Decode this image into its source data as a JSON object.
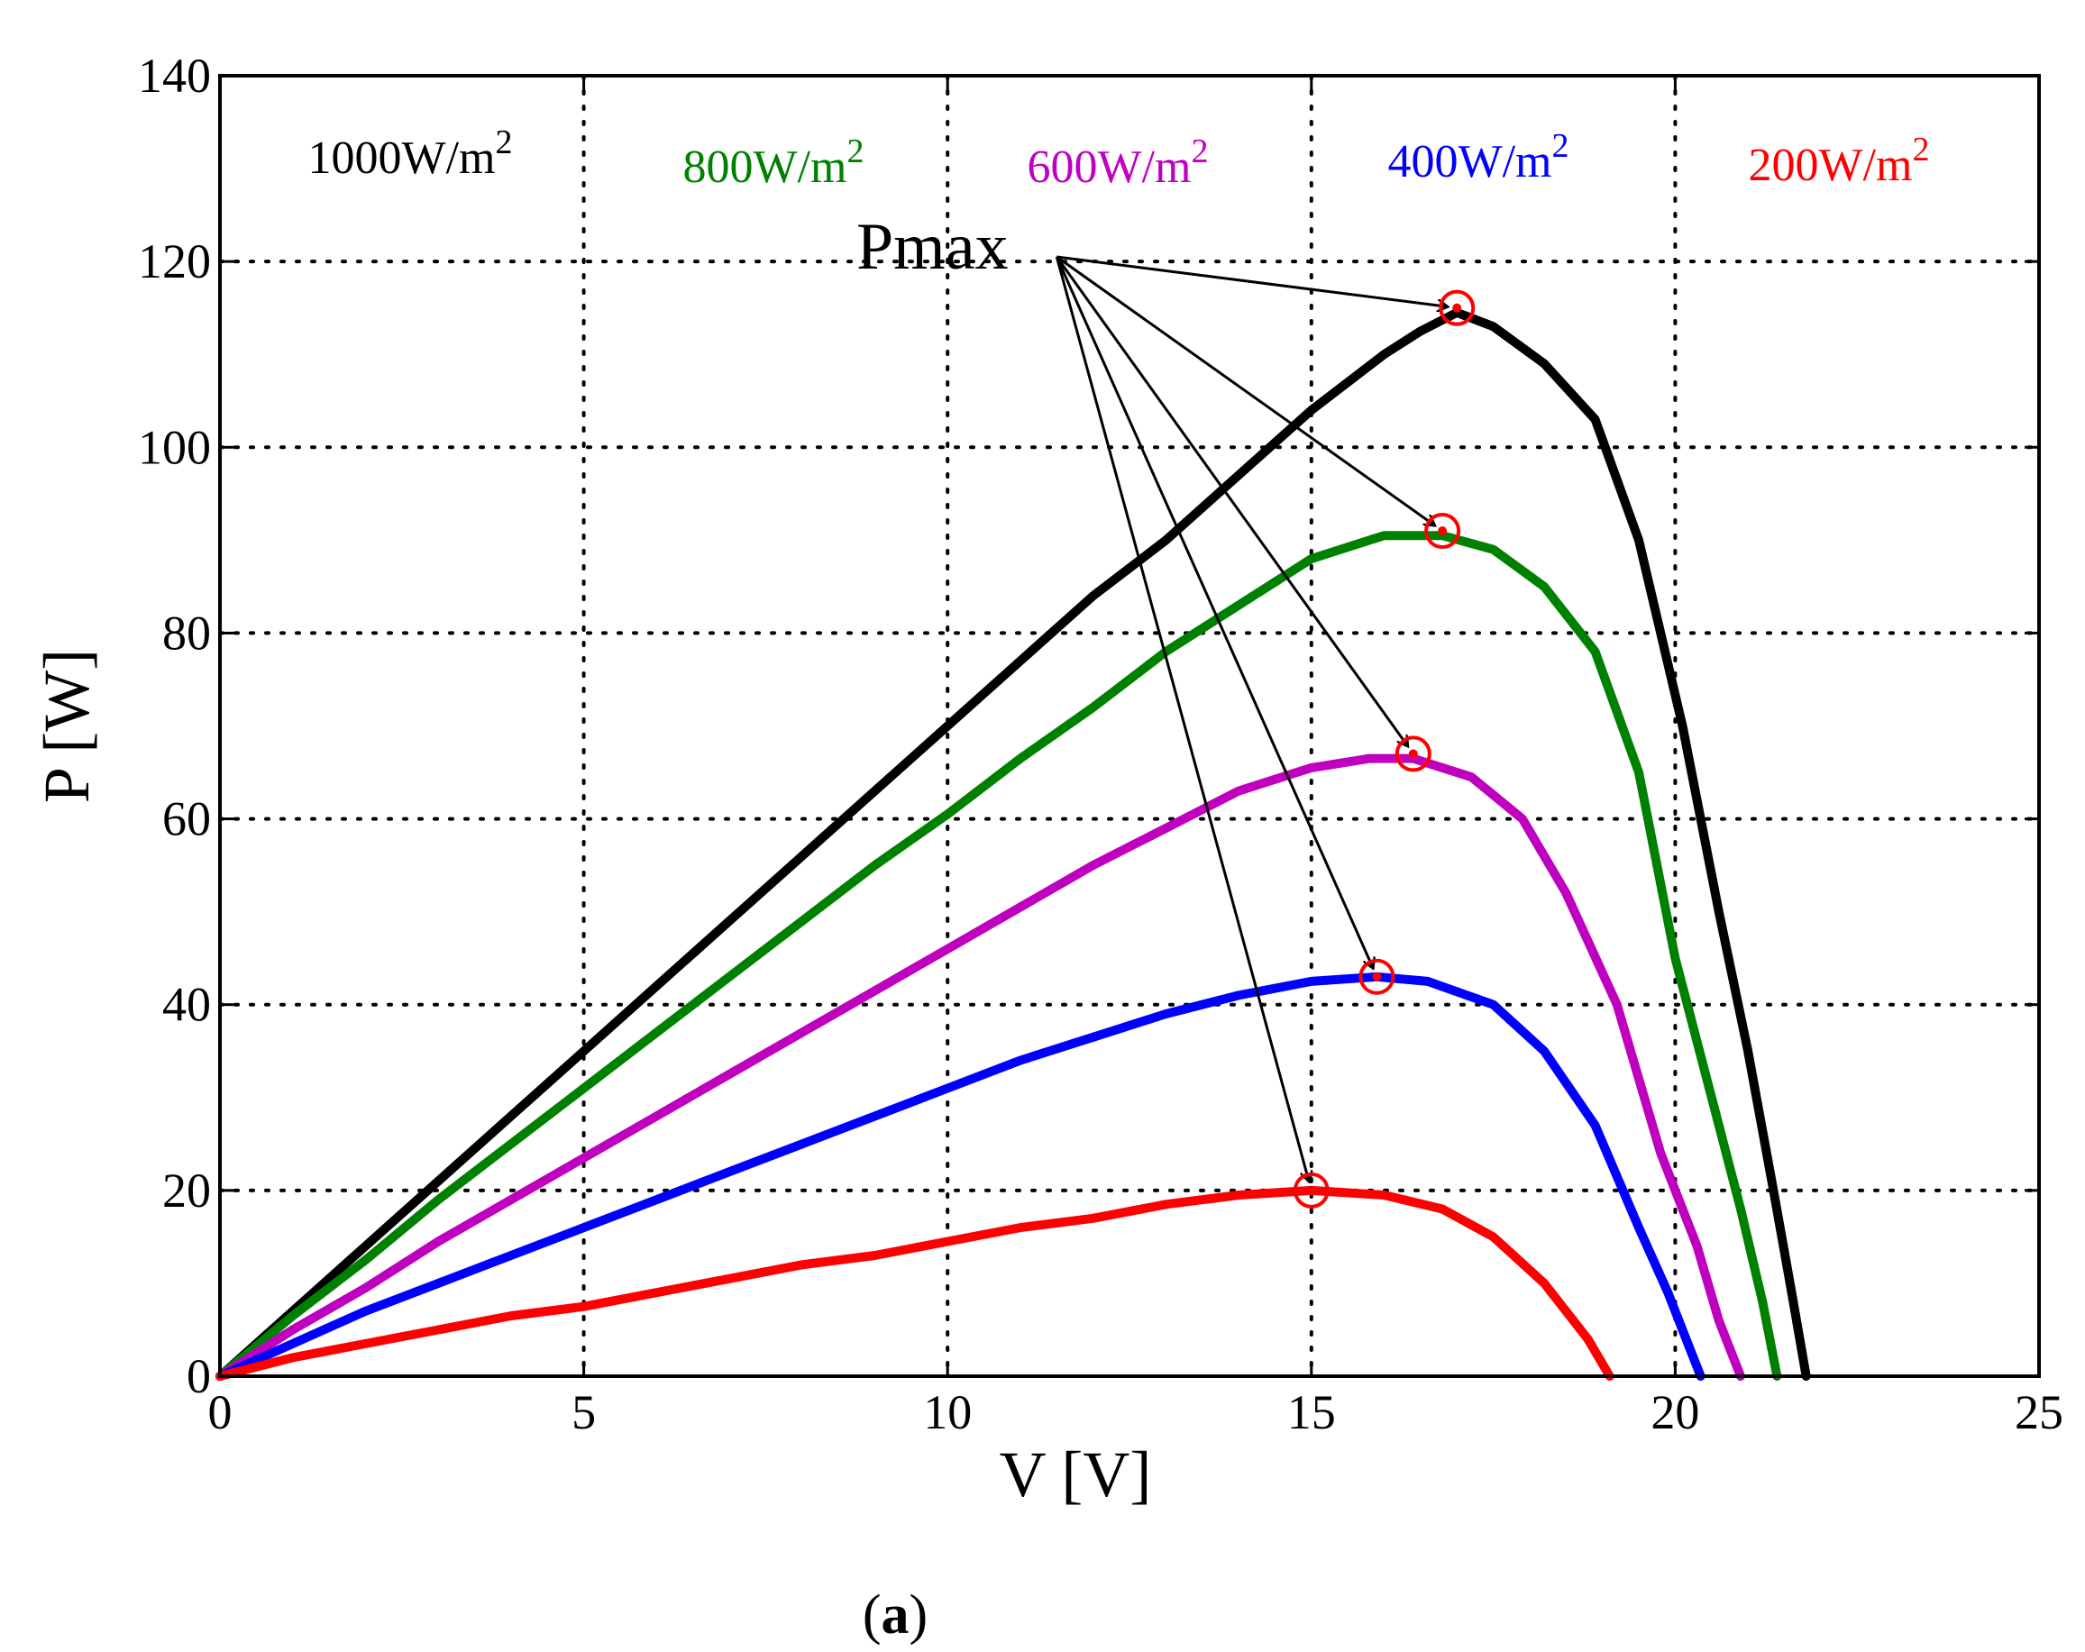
{
  "chart_data": {
    "type": "line",
    "xlabel": "V [V]",
    "ylabel": "P [W]",
    "xlim": [
      0,
      25
    ],
    "ylim": [
      0,
      140
    ],
    "xticks": [
      {
        "value": 0,
        "label": "0"
      },
      {
        "value": 5,
        "label": "5"
      },
      {
        "value": 10,
        "label": "10"
      },
      {
        "value": 15,
        "label": "15"
      },
      {
        "value": 20,
        "label": "20"
      },
      {
        "value": 25,
        "label": "25"
      }
    ],
    "yticks": [
      {
        "value": 0,
        "label": "0"
      },
      {
        "value": 20,
        "label": "20"
      },
      {
        "value": 40,
        "label": "40"
      },
      {
        "value": 60,
        "label": "60"
      },
      {
        "value": 80,
        "label": "80"
      },
      {
        "value": 100,
        "label": "100"
      },
      {
        "value": 120,
        "label": "120"
      },
      {
        "value": 140,
        "label": "140"
      }
    ],
    "grid": true,
    "series": [
      {
        "name": "1000W/m2",
        "label_main": "1000W/m",
        "label_sup": "2",
        "color": "#000000",
        "x": [
          0,
          1,
          2,
          3,
          4,
          5,
          6,
          7,
          8,
          9,
          10,
          11,
          12,
          13,
          14,
          15,
          16,
          16.5,
          17,
          17.5,
          18.2,
          18.9,
          19.5,
          20.1,
          20.6,
          21.0,
          21.35,
          21.6,
          21.8
        ],
        "y": [
          0,
          7,
          14,
          21,
          28,
          35,
          42,
          49,
          56,
          63,
          70,
          77,
          84,
          90,
          97,
          104,
          110,
          112.5,
          114.5,
          113,
          109,
          103,
          90,
          70,
          50,
          35,
          20,
          9,
          0
        ],
        "pmax": [
          17.0,
          115
        ]
      },
      {
        "name": "800W/m2",
        "label_main": "800W/m",
        "label_sup": "2",
        "color": "#008000",
        "x": [
          0,
          1,
          2,
          3,
          4,
          5,
          6,
          7,
          8,
          9,
          10,
          11,
          12,
          13,
          14,
          15,
          16,
          16.8,
          17.5,
          18.2,
          18.9,
          19.5,
          20.0,
          20.5,
          20.9,
          21.2,
          21.4
        ],
        "y": [
          0,
          6.5,
          12.5,
          19,
          25,
          31,
          37,
          43,
          49,
          55,
          60.5,
          66.5,
          72,
          78,
          83,
          88,
          90.5,
          90.5,
          89,
          85,
          78,
          65,
          45,
          30,
          18,
          8,
          0
        ],
        "pmax": [
          16.8,
          91
        ]
      },
      {
        "name": "600W/m2",
        "label_main": "600W/m",
        "label_sup": "2",
        "color": "#bf00bf",
        "x": [
          0,
          1,
          2,
          3,
          4,
          5,
          6,
          7,
          8,
          9,
          10,
          11,
          12,
          13,
          14,
          15,
          15.8,
          16.4,
          17.2,
          17.9,
          18.5,
          19.2,
          19.8,
          20.3,
          20.6,
          20.9
        ],
        "y": [
          0,
          5,
          9.5,
          14.5,
          19,
          23.5,
          28,
          32.5,
          37,
          41.5,
          46,
          50.5,
          55,
          59,
          63,
          65.5,
          66.5,
          66.5,
          64.5,
          60,
          52,
          40,
          24,
          14,
          6,
          0
        ],
        "pmax": [
          16.4,
          67
        ]
      },
      {
        "name": "400W/m2",
        "label_main": "400W/m",
        "label_sup": "2",
        "color": "#0000ff",
        "x": [
          0,
          1,
          2,
          3,
          4,
          5,
          6,
          7,
          8,
          9,
          10,
          11,
          12,
          13,
          14,
          15,
          15.9,
          16.6,
          17.5,
          18.2,
          18.9,
          19.5,
          19.9,
          20.2,
          20.35
        ],
        "y": [
          0,
          3.5,
          7,
          10,
          13,
          16,
          19,
          22,
          25,
          28,
          31,
          34,
          36.5,
          39,
          41,
          42.5,
          43,
          42.5,
          40,
          35,
          27,
          16,
          9,
          3,
          0
        ],
        "pmax": [
          15.9,
          43
        ]
      },
      {
        "name": "200W/m2",
        "label_main": "200W/m",
        "label_sup": "2",
        "color": "#ff0000",
        "x": [
          0,
          1,
          2,
          3,
          4,
          5,
          6,
          7,
          8,
          9,
          10,
          11,
          12,
          13,
          14,
          15,
          16,
          16.8,
          17.5,
          18.2,
          18.8,
          19.1
        ],
        "y": [
          0,
          2,
          3.5,
          5,
          6.5,
          7.5,
          9,
          10.5,
          12,
          13,
          14.5,
          16,
          17,
          18.5,
          19.5,
          20,
          19.5,
          18,
          15,
          10,
          4,
          0
        ],
        "pmax": [
          15.0,
          20
        ]
      }
    ],
    "annotation": {
      "text": "Pmax",
      "anchor": [
        11.5,
        120.5
      ]
    },
    "caption": {
      "open": "(",
      "letter": "a",
      "close": ")"
    }
  }
}
